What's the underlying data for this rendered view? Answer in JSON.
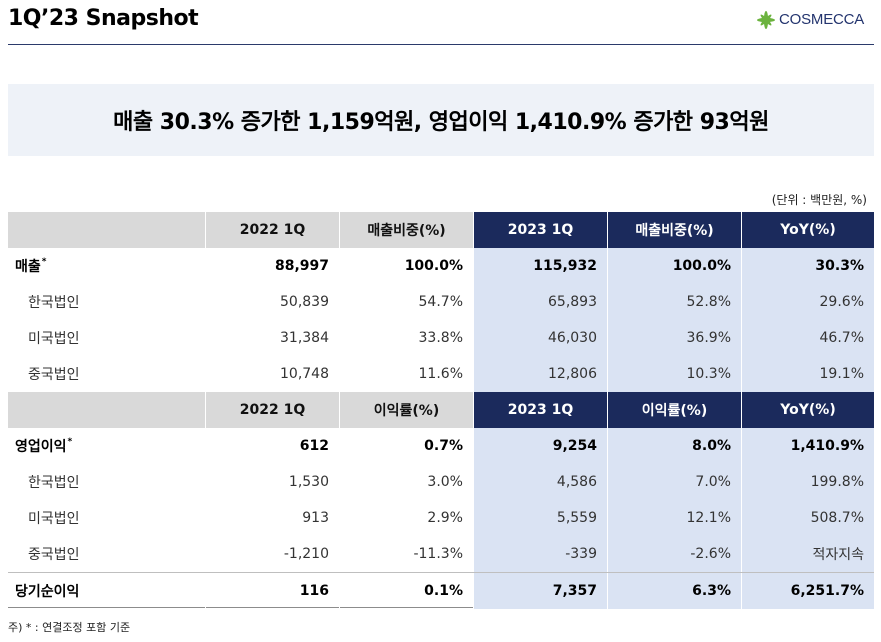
{
  "header": {
    "title": "1Q’23 Snapshot"
  },
  "logo": {
    "text": "COSMECCA",
    "icon": "cosmecca-leaf-icon",
    "icon_color": "#6cb33f"
  },
  "banner": {
    "headline": "매출 30.3% 증가한 1,159억원, 영업이익 1,410.9% 증가한 93억원"
  },
  "unit_note": "(단위 : 백만원, %)",
  "colors": {
    "header_navy": "#1b2a5c",
    "header_gray": "#d9d9d9",
    "highlight_blue": "#dae3f3",
    "banner_bg": "#eef2f8",
    "rule": "#2b3a6b",
    "logo_text": "#23346e"
  },
  "table": {
    "sections": [
      {
        "columns": [
          "2022 1Q",
          "매출비중(%)",
          "2023 1Q",
          "매출비중(%)",
          "YoY(%)"
        ],
        "rows": [
          {
            "label": "매출",
            "mark": "*",
            "values": [
              "88,997",
              "100.0%",
              "115,932",
              "100.0%",
              "30.3%"
            ]
          },
          {
            "label": "한국법인",
            "values": [
              "50,839",
              "54.7%",
              "65,893",
              "52.8%",
              "29.6%"
            ]
          },
          {
            "label": "미국법인",
            "values": [
              "31,384",
              "33.8%",
              "46,030",
              "36.9%",
              "46.7%"
            ]
          },
          {
            "label": "중국법인",
            "values": [
              "10,748",
              "11.6%",
              "12,806",
              "10.3%",
              "19.1%"
            ]
          }
        ]
      },
      {
        "columns": [
          "2022 1Q",
          "이익률(%)",
          "2023 1Q",
          "이익률(%)",
          "YoY(%)"
        ],
        "rows": [
          {
            "label": "영업이익",
            "mark": "*",
            "values": [
              "612",
              "0.7%",
              "9,254",
              "8.0%",
              "1,410.9%"
            ]
          },
          {
            "label": "한국법인",
            "values": [
              "1,530",
              "3.0%",
              "4,586",
              "7.0%",
              "199.8%"
            ]
          },
          {
            "label": "미국법인",
            "values": [
              "913",
              "2.9%",
              "5,559",
              "12.1%",
              "508.7%"
            ]
          },
          {
            "label": "중국법인",
            "values": [
              "-1,210",
              "-11.3%",
              "-339",
              "-2.6%",
              "적자지속"
            ]
          },
          {
            "label": "당기순이익",
            "values": [
              "116",
              "0.1%",
              "7,357",
              "6.3%",
              "6,251.7%"
            ]
          }
        ]
      }
    ]
  },
  "footnote": "주) * : 연결조정 포함 기준"
}
